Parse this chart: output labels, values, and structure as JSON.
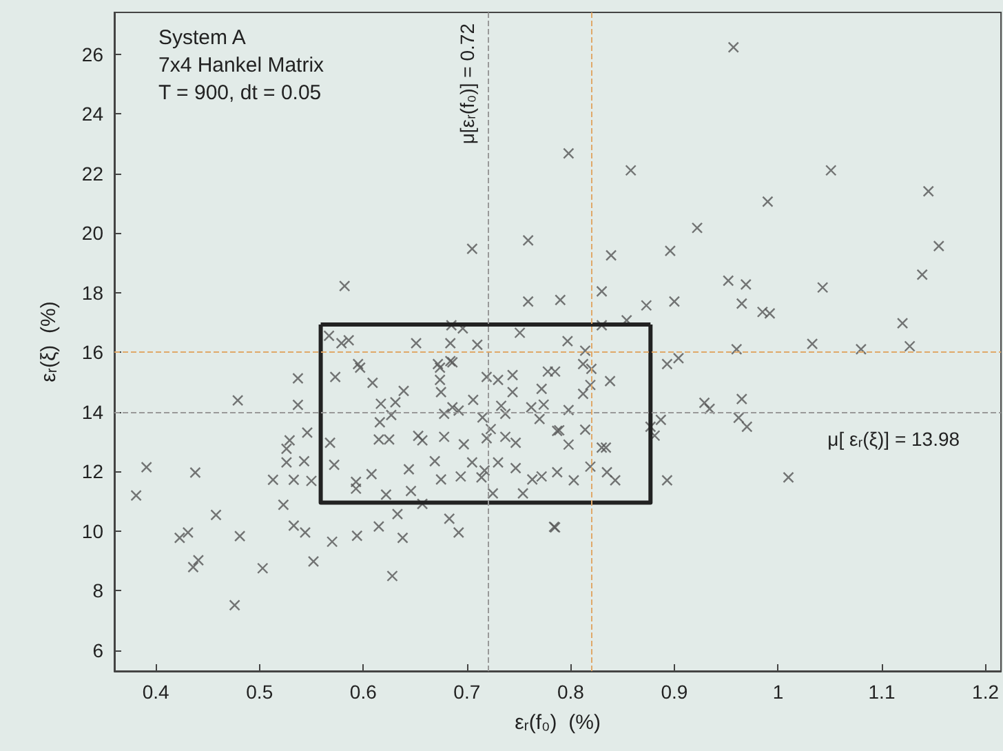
{
  "chart_data": {
    "type": "scatter",
    "xlabel": "εᵣ(f₀)  (%)",
    "ylabel": "εᵣ(ξ)  (%)",
    "xlim": [
      0.36,
      1.215
    ],
    "xticks": [
      0.4,
      0.5,
      0.6,
      0.7,
      0.8,
      0.9,
      1,
      1.1,
      1.2
    ],
    "ylim": [
      5.3,
      27.4
    ],
    "yticks": [
      6,
      8,
      10,
      12,
      14,
      16,
      18,
      20,
      22,
      24,
      26
    ],
    "marker": "cross",
    "grid": false,
    "annotations": [
      "System A",
      "7x4 Hankel Matrix",
      "T = 900, dt = 0.05"
    ],
    "ref_lines": [
      {
        "axis": "x",
        "value": 0.72,
        "label": "μ[εᵣ(f₀)] = 0.72",
        "color": "#999999",
        "line_style": "dashed"
      },
      {
        "axis": "y",
        "value": 13.98,
        "label": "μ[ εᵣ(ξ)] = 13.98",
        "color": "#999999",
        "line_style": "dashed"
      },
      {
        "axis": "x",
        "value": 0.818,
        "label": null,
        "color": "#e0a868",
        "line_style": "dashed"
      },
      {
        "axis": "y",
        "value": 16.0,
        "label": null,
        "color": "#e0a868",
        "line_style": "dashed"
      }
    ],
    "series": [
      {
        "color": "#555555",
        "x": [
          0.705,
          0.582,
          0.759,
          0.759,
          0.79,
          0.685,
          0.696,
          0.751,
          0.579,
          0.586,
          0.595,
          0.651,
          0.684,
          0.71,
          0.672,
          0.684,
          0.567,
          0.957,
          0.798,
          0.858,
          1.051,
          1.145,
          0.99,
          0.922,
          1.155,
          0.839,
          0.896,
          1.139,
          0.952,
          0.969,
          1.043,
          0.83,
          0.873,
          0.9,
          0.965,
          0.985,
          0.992,
          1.12,
          0.854,
          0.83,
          0.797,
          0.814,
          0.96,
          1.033,
          1.08,
          1.127,
          0.812,
          0.82,
          0.893,
          0.904,
          0.812,
          0.819,
          0.838,
          0.798,
          0.787,
          0.798,
          0.814,
          0.83,
          0.834,
          0.787,
          0.803,
          0.819,
          0.835,
          0.843,
          0.887,
          0.877,
          0.881,
          0.893,
          0.929,
          0.934,
          0.965,
          0.962,
          0.97,
          1.01,
          0.785,
          0.785,
          0.537,
          0.573,
          0.597,
          0.609,
          0.479,
          0.537,
          0.674,
          0.686,
          0.674,
          0.675,
          0.639,
          0.617,
          0.631,
          0.719,
          0.73,
          0.744,
          0.778,
          0.744,
          0.772,
          0.706,
          0.686,
          0.692,
          0.678,
          0.733,
          0.762,
          0.774,
          0.737,
          0.715,
          0.77,
          0.789,
          0.627,
          0.616,
          0.546,
          0.529,
          0.568,
          0.615,
          0.625,
          0.653,
          0.657,
          0.678,
          0.697,
          0.723,
          0.719,
          0.737,
          0.747,
          0.526,
          0.526,
          0.543,
          0.572,
          0.608,
          0.644,
          0.669,
          0.675,
          0.694,
          0.705,
          0.717,
          0.714,
          0.73,
          0.747,
          0.763,
          0.772,
          0.513,
          0.533,
          0.55,
          0.593,
          0.593,
          0.622,
          0.646,
          0.657,
          0.725,
          0.754,
          0.523,
          0.633,
          0.683,
          0.692,
          0.784,
          0.533,
          0.544,
          0.57,
          0.594,
          0.615,
          0.638,
          0.458,
          0.481,
          0.423,
          0.431,
          0.436,
          0.441,
          0.503,
          0.552,
          0.628,
          0.476,
          0.391,
          0.438,
          0.381
        ],
        "values": [
          19.47,
          18.22,
          19.75,
          17.7,
          17.75,
          16.9,
          16.8,
          16.65,
          16.3,
          16.4,
          15.6,
          16.3,
          16.3,
          16.25,
          15.6,
          15.7,
          16.55,
          26.23,
          22.67,
          22.1,
          22.1,
          21.4,
          21.05,
          20.17,
          19.56,
          19.25,
          19.4,
          18.6,
          18.4,
          18.27,
          18.17,
          18.04,
          17.57,
          17.7,
          17.63,
          17.35,
          17.3,
          16.97,
          17.07,
          16.9,
          16.37,
          16.05,
          16.1,
          16.28,
          16.1,
          16.2,
          15.6,
          15.44,
          15.6,
          15.8,
          14.6,
          14.9,
          15.03,
          14.06,
          13.36,
          12.9,
          13.4,
          12.8,
          12.8,
          11.97,
          11.7,
          12.16,
          11.97,
          11.7,
          13.73,
          13.5,
          13.2,
          11.7,
          14.3,
          14.1,
          14.43,
          13.8,
          13.5,
          11.8,
          10.12,
          15.35,
          15.12,
          15.17,
          15.48,
          14.97,
          14.38,
          14.23,
          15.48,
          15.66,
          15.07,
          14.66,
          14.7,
          14.27,
          14.32,
          15.17,
          15.07,
          15.23,
          15.35,
          14.66,
          14.77,
          14.4,
          14.15,
          14.04,
          13.93,
          14.2,
          14.15,
          14.24,
          13.93,
          13.81,
          13.76,
          13.38,
          13.89,
          13.65,
          13.3,
          13.04,
          12.96,
          13.07,
          13.07,
          13.19,
          13.04,
          13.16,
          12.91,
          13.42,
          13.11,
          13.16,
          12.96,
          12.76,
          12.3,
          12.34,
          12.22,
          11.91,
          12.07,
          12.34,
          11.73,
          11.83,
          12.3,
          12.03,
          11.8,
          12.3,
          12.11,
          11.73,
          11.83,
          11.72,
          11.72,
          11.68,
          11.65,
          11.42,
          11.22,
          11.34,
          10.91,
          11.26,
          11.26,
          10.88,
          10.57,
          10.41,
          9.95,
          10.14,
          10.18,
          9.95,
          9.64,
          9.84,
          10.15,
          9.77,
          10.54,
          9.83,
          9.77,
          9.95,
          8.79,
          9.02,
          8.75,
          8.98,
          8.49,
          7.51,
          12.14,
          11.96,
          11.19
        ]
      },
      {
        "type": "line",
        "color": "#222222",
        "marker": "none",
        "x": [
          0.559,
          0.559,
          0.877,
          0.877
        ],
        "values": [
          16.93,
          10.95,
          10.95,
          16.93
        ]
      },
      {
        "type": "line",
        "color": "#222222",
        "marker": "none",
        "x": [
          0.559,
          0.877
        ],
        "values": [
          16.93,
          16.93
        ]
      }
    ]
  }
}
